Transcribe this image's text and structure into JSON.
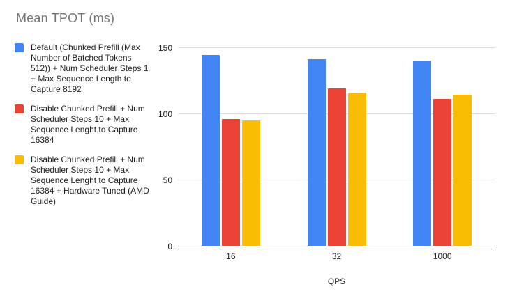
{
  "title": "Mean TPOT (ms)",
  "colors": {
    "series_blue": "#4285F4",
    "series_red": "#EA4335",
    "series_yellow": "#FBBC04",
    "gridline": "#d9d9d9",
    "axis_line": "#212121",
    "title_text": "#757575"
  },
  "chart_data": {
    "type": "bar",
    "title": "Mean TPOT (ms)",
    "categories": [
      "16",
      "32",
      "1000"
    ],
    "series": [
      {
        "name": "Default (Chunked Prefill (Max Number of Batched Tokens 512)) + Num Scheduler Steps 1 + Max Sequence Length to Capture 8192",
        "color": "#4285F4",
        "values": [
          144,
          141,
          140
        ]
      },
      {
        "name": "Disable Chunked Prefill + Num Scheduler Steps 10 + Max Sequence Lenght to Capture 16384",
        "color": "#EA4335",
        "values": [
          96,
          119,
          111
        ]
      },
      {
        "name": "Disable Chunked Prefill + Num Scheduler Steps 10 + Max Sequence Lenght to Capture 16384 + Hardware Tuned (AMD Guide)",
        "color": "#FBBC04",
        "values": [
          95,
          116,
          114
        ]
      }
    ],
    "xlabel": "QPS",
    "ylabel": "",
    "ylim": [
      0,
      150
    ],
    "yticks": [
      0,
      50,
      100,
      150
    ],
    "grid": true,
    "legend_position": "left"
  }
}
